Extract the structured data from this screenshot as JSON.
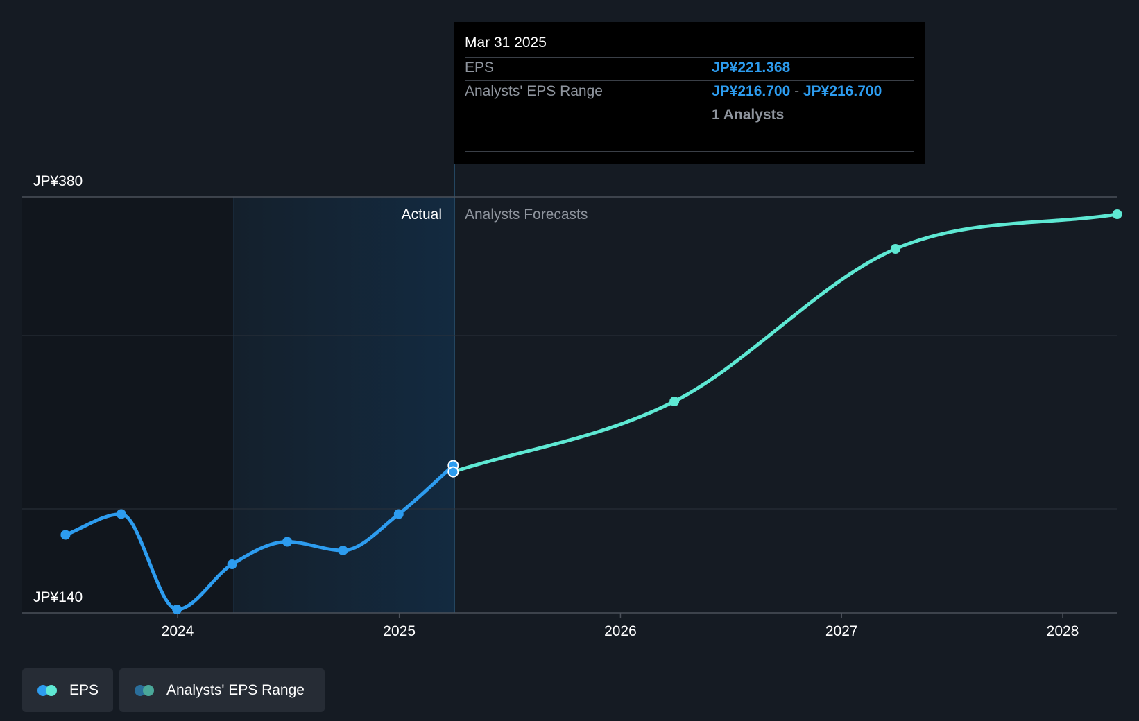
{
  "chart_data": {
    "type": "line",
    "y_axis": {
      "labels": [
        "JP¥380",
        "JP¥140"
      ],
      "ylim": [
        140,
        380
      ]
    },
    "x_axis": {
      "ticks": [
        "2024",
        "2025",
        "2026",
        "2027",
        "2028"
      ]
    },
    "grid": true,
    "region_labels": {
      "actual": "Actual",
      "forecast": "Analysts Forecasts"
    },
    "series": [
      {
        "name": "EPS",
        "segment": "actual",
        "color": "#2d9cef",
        "x": [
          "2023-06-30",
          "2023-09-30",
          "2023-12-31",
          "2024-03-31",
          "2024-06-30",
          "2024-09-30",
          "2024-12-31",
          "2025-03-31"
        ],
        "values": [
          185,
          197,
          142,
          168,
          181,
          176,
          197,
          225
        ]
      },
      {
        "name": "EPS",
        "segment": "forecast",
        "color": "#5ee8d3",
        "x": [
          "2025-03-31",
          "2026-03-31",
          "2027-03-31",
          "2028-03-31"
        ],
        "values": [
          221.368,
          262,
          350,
          370
        ]
      }
    ],
    "highlight_points": [
      {
        "x": "2025-03-31",
        "value": 225
      },
      {
        "x": "2025-03-31",
        "value": 221.368
      }
    ],
    "tooltip": {
      "date": "Mar 31 2025",
      "eps_label": "EPS",
      "eps_value": "JP¥221.368",
      "range_label": "Analysts' EPS Range",
      "range_low": "JP¥216.700",
      "range_sep": "-",
      "range_high": "JP¥216.700",
      "analysts": "1 Analysts"
    },
    "legend": [
      {
        "label": "EPS",
        "colors": [
          "#2d9cef",
          "#5ee8d3"
        ]
      },
      {
        "label": "Analysts' EPS Range",
        "colors": [
          "#2a6e9a",
          "#4aa899"
        ]
      }
    ]
  }
}
